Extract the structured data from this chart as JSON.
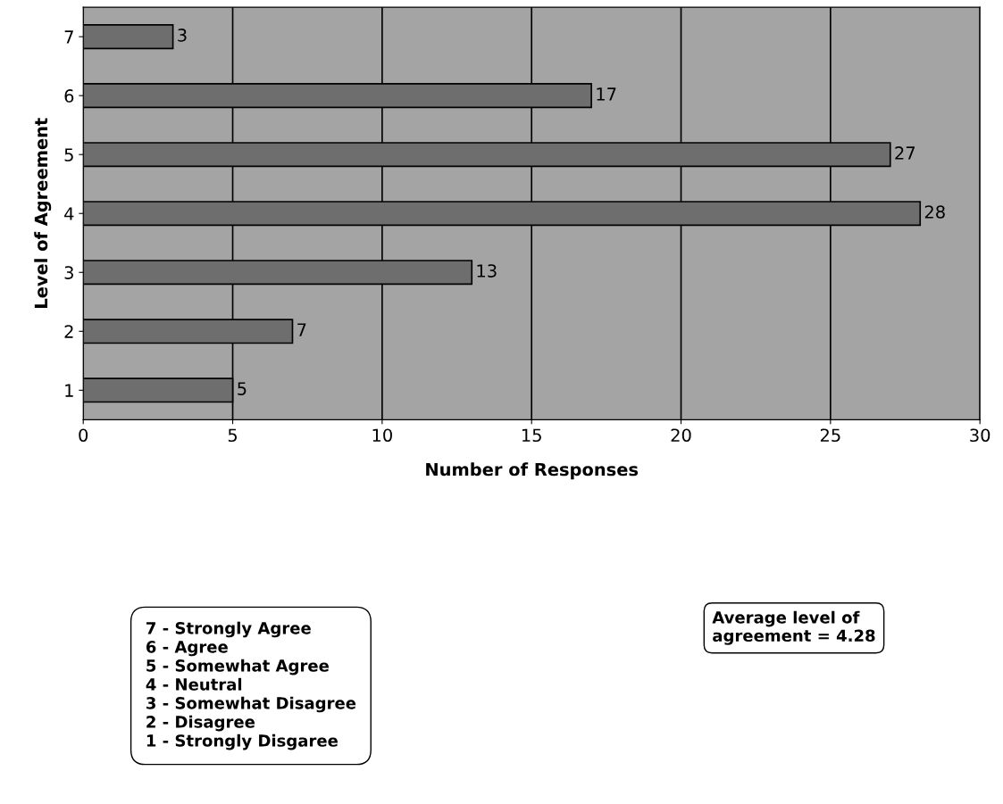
{
  "chart_data": {
    "type": "bar",
    "orientation": "horizontal",
    "xlabel": "Number of Responses",
    "ylabel": "Level of Agreement",
    "categories": [
      "7",
      "6",
      "5",
      "4",
      "3",
      "2",
      "1"
    ],
    "values": [
      3,
      17,
      27,
      28,
      13,
      7,
      5
    ],
    "color": "#6e6e6e",
    "xlim": [
      0,
      30
    ],
    "xticks": [
      0,
      5,
      10,
      15,
      20,
      25,
      30
    ],
    "grid": "x",
    "data_labels": true,
    "annotations": [
      "7 - Strongly Agree",
      "6 - Agree",
      "5 - Somewhat Agree",
      "4 - Neutral",
      "3 - Somewhat Disagree",
      "2 - Disagree",
      "1 - Strongly Disgaree",
      "Average level of",
      "agreement = 4.28"
    ]
  }
}
